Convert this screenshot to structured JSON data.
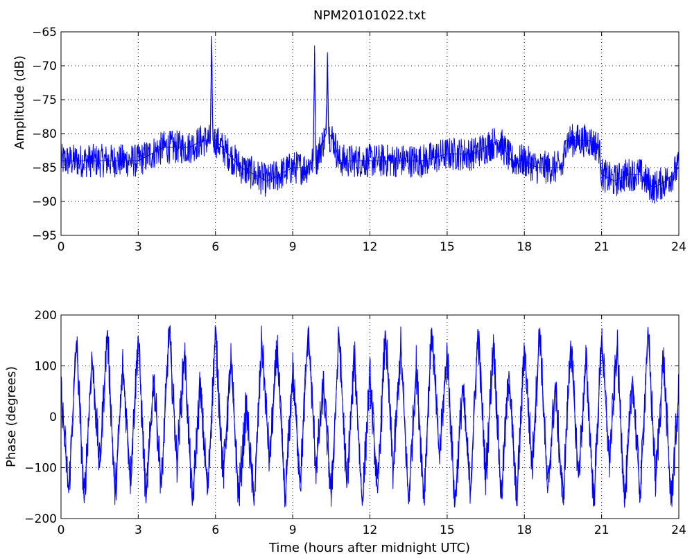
{
  "chart_data": [
    {
      "type": "line",
      "title": "NPM20101022.txt",
      "xlabel": "",
      "ylabel": "Amplitude (dB)",
      "xlim": [
        0,
        24
      ],
      "ylim": [
        -95,
        -65
      ],
      "xticks": [
        0,
        3,
        6,
        9,
        12,
        15,
        18,
        21,
        24
      ],
      "yticks": [
        -95,
        -90,
        -85,
        -80,
        -75,
        -70,
        -65
      ],
      "grid": true,
      "line_color": "#0000ff",
      "series": [
        {
          "x": [
            0,
            0.5,
            1,
            1.5,
            2,
            2.5,
            3,
            3.5,
            4,
            4.5,
            5,
            5.5,
            5.8,
            5.85,
            5.9,
            6,
            6.5,
            7,
            7.5,
            8,
            8.5,
            9,
            9.5,
            9.8,
            9.85,
            9.9,
            10,
            10.3,
            10.35,
            10.4,
            10.6,
            10.8,
            11,
            12,
            13,
            14,
            15,
            15.5,
            16,
            16.5,
            17,
            17.5,
            18,
            18.5,
            19,
            19.5,
            19.6,
            20,
            20.5,
            20.9,
            21,
            21.5,
            22,
            22.5,
            23,
            23.5,
            24
          ],
          "values": [
            -84,
            -84,
            -84,
            -84,
            -84,
            -84,
            -84,
            -83,
            -82,
            -82,
            -82,
            -81,
            -81,
            -67,
            -81,
            -81,
            -83,
            -85,
            -86,
            -87,
            -86,
            -85,
            -85,
            -84,
            -67,
            -84,
            -83,
            -80,
            -68,
            -80,
            -81,
            -84,
            -84,
            -84,
            -84,
            -84,
            -83,
            -83,
            -83,
            -82,
            -81,
            -84,
            -84,
            -85,
            -85,
            -85,
            -81,
            -81,
            -81,
            -82,
            -86,
            -87,
            -86,
            -86,
            -88,
            -87,
            -85
          ]
        }
      ]
    },
    {
      "type": "line",
      "title": "",
      "xlabel": "Time (hours after midnight UTC)",
      "ylabel": "Phase (degrees)",
      "xlim": [
        0,
        24
      ],
      "ylim": [
        -200,
        200
      ],
      "xticks": [
        0,
        3,
        6,
        9,
        12,
        15,
        18,
        21,
        24
      ],
      "yticks": [
        -200,
        -100,
        0,
        100,
        200
      ],
      "grid": true,
      "line_color": "#0000ff",
      "series": [
        {
          "x": [
            0,
            0.3,
            0.6,
            0.9,
            1.2,
            1.5,
            1.8,
            2.1,
            2.4,
            2.7,
            3,
            3.3,
            3.6,
            3.9,
            4.2,
            4.5,
            4.8,
            5.1,
            5.4,
            5.7,
            6,
            6.3,
            6.6,
            6.9,
            7.2,
            7.5,
            7.8,
            8.1,
            8.4,
            8.7,
            9,
            9.3,
            9.6,
            9.9,
            10.2,
            10.5,
            10.8,
            11.1,
            11.4,
            11.7,
            12,
            12.3,
            12.6,
            12.9,
            13.2,
            13.5,
            13.8,
            14.1,
            14.4,
            14.7,
            15,
            15.3,
            15.6,
            15.9,
            16.2,
            16.5,
            16.8,
            17.1,
            17.4,
            17.7,
            18,
            18.3,
            18.6,
            18.9,
            19.2,
            19.5,
            19.8,
            20.1,
            20.4,
            20.7,
            21,
            21.3,
            21.6,
            21.9,
            22.2,
            22.5,
            22.8,
            23.1,
            23.4,
            23.7,
            24
          ],
          "values": [
            50,
            -150,
            150,
            -170,
            120,
            -100,
            170,
            -160,
            100,
            -120,
            160,
            -170,
            80,
            -140,
            175,
            -90,
            130,
            -175,
            60,
            -150,
            170,
            -120,
            110,
            -160,
            20,
            -175,
            150,
            -90,
            140,
            -170,
            90,
            -130,
            175,
            -100,
            60,
            -160,
            165,
            -140,
            120,
            -175,
            80,
            -150,
            170,
            -110,
            140,
            -170,
            100,
            -160,
            175,
            -80,
            130,
            -175,
            60,
            -150,
            170,
            -120,
            150,
            -160,
            90,
            -175,
            140,
            -100,
            175,
            -150,
            60,
            -170,
            150,
            -120,
            110,
            -175,
            160,
            -90,
            140,
            -170,
            80,
            -160,
            175,
            -130,
            120,
            -170,
            50
          ]
        }
      ]
    }
  ]
}
